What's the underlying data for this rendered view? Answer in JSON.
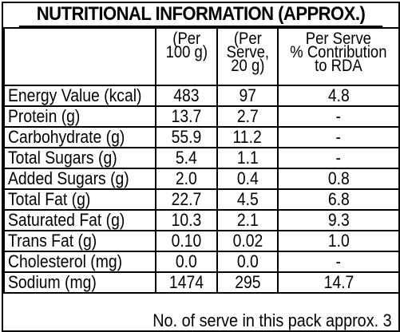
{
  "title": "NUTRITIONAL INFORMATION (APPROX.)",
  "header": {
    "col_per_100g": [
      "(Per",
      "100 g)"
    ],
    "col_per_serve": [
      "(Per",
      "Serve,",
      "20 g)"
    ],
    "col_rda": [
      "Per Serve",
      "% Contribution",
      "to RDA"
    ]
  },
  "rows": [
    {
      "nutrient": "Energy Value (kcal)",
      "per_100g": "483",
      "per_serve": "97",
      "rda": "4.8"
    },
    {
      "nutrient": "Protein (g)",
      "per_100g": "13.7",
      "per_serve": "2.7",
      "rda": "-"
    },
    {
      "nutrient": "Carbohydrate (g)",
      "per_100g": "55.9",
      "per_serve": "11.2",
      "rda": "-"
    },
    {
      "nutrient": "Total Sugars (g)",
      "per_100g": "5.4",
      "per_serve": "1.1",
      "rda": "-"
    },
    {
      "nutrient": "Added Sugars (g)",
      "per_100g": "2.0",
      "per_serve": "0.4",
      "rda": "0.8"
    },
    {
      "nutrient": "Total Fat (g)",
      "per_100g": "22.7",
      "per_serve": "4.5",
      "rda": "6.8"
    },
    {
      "nutrient": "Saturated Fat (g)",
      "per_100g": "10.3",
      "per_serve": "2.1",
      "rda": "9.3"
    },
    {
      "nutrient": "Trans Fat (g)",
      "per_100g": "0.10",
      "per_serve": "0.02",
      "rda": "1.0"
    },
    {
      "nutrient": "Cholesterol (mg)",
      "per_100g": "0.0",
      "per_serve": "0.0",
      "rda": "-"
    },
    {
      "nutrient": "Sodium (mg)",
      "per_100g": "1474",
      "per_serve": "295",
      "rda": "14.7"
    }
  ],
  "footer": "No. of serve in this pack approx. 3"
}
